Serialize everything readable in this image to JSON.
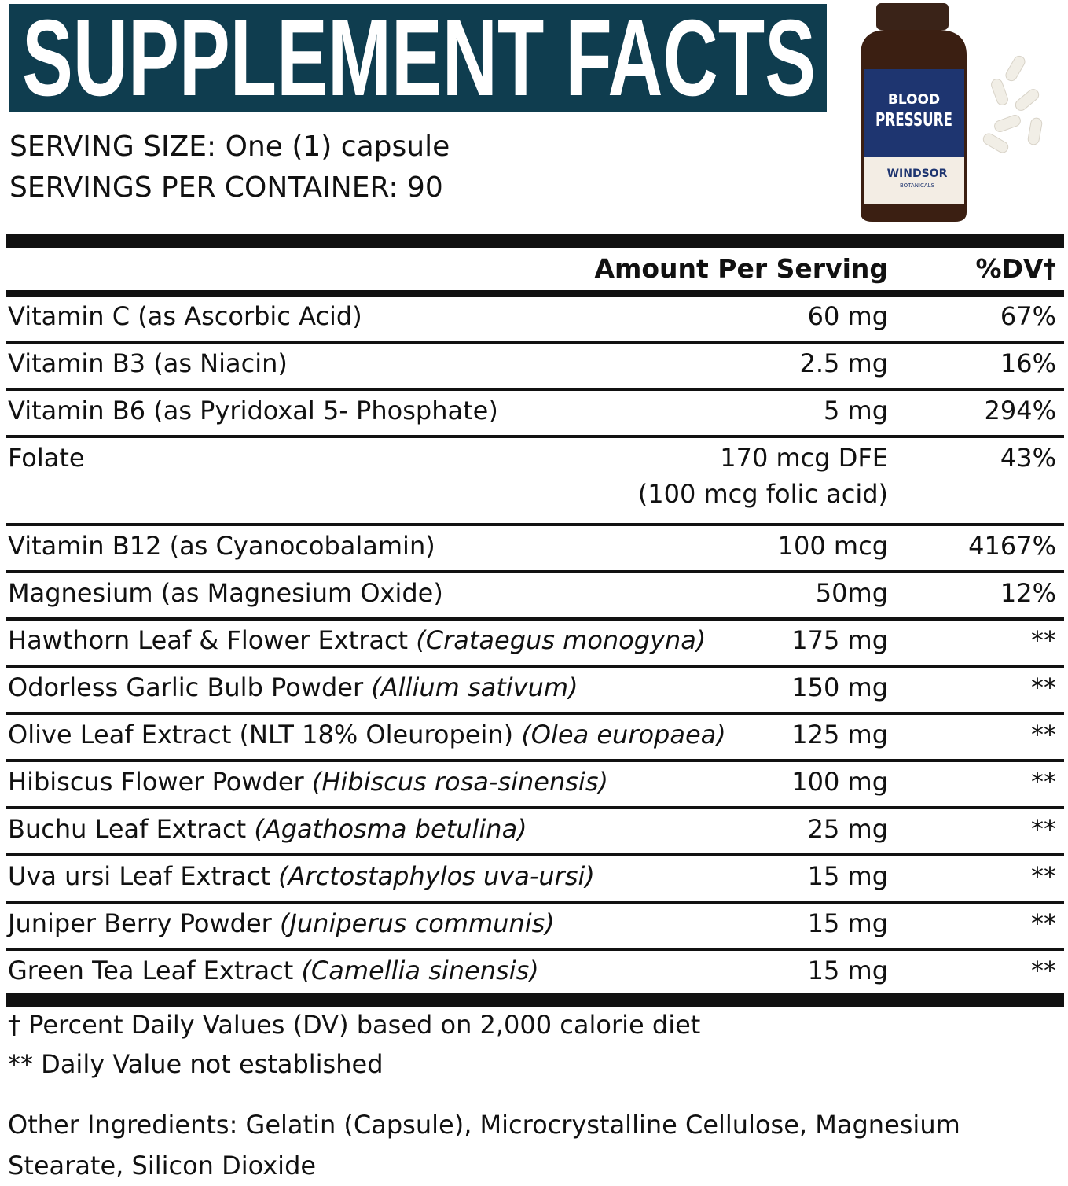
{
  "header": {
    "title": "SUPPLEMENT FACTS",
    "serving_size": "SERVING SIZE: One (1) capsule",
    "servings_per_container": "SERVINGS PER CONTAINER: 90"
  },
  "product": {
    "line1": "BLOOD",
    "line2": "PRESSURE",
    "brand": "WINDSOR",
    "brand_sub": "BOTANICALS"
  },
  "table": {
    "columns": {
      "amount": "Amount Per Serving",
      "dv": "%DV†"
    },
    "rows": [
      {
        "name": "Vitamin C (as Ascorbic Acid)",
        "amount": "60 mg",
        "dv": "67%"
      },
      {
        "name": "Vitamin B3 (as Niacin)",
        "amount": "2.5 mg",
        "dv": "16%"
      },
      {
        "name": "Vitamin B6 (as Pyridoxal 5- Phosphate)",
        "amount": "5 mg",
        "dv": "294%"
      },
      {
        "name": "Folate",
        "amount": "170 mcg DFE",
        "amount_note": "(100 mcg folic acid)",
        "dv": "43%"
      },
      {
        "name": "Vitamin B12 (as Cyanocobalamin)",
        "amount": "100 mcg",
        "dv": "4167%"
      },
      {
        "name": "Magnesium (as Magnesium Oxide)",
        "amount": "50mg",
        "dv": "12%"
      },
      {
        "name": "Hawthorn Leaf & Flower Extract",
        "latin": "(Crataegus monogyna)",
        "amount": "175 mg",
        "dv": "**"
      },
      {
        "name": "Odorless Garlic Bulb Powder",
        "latin": "(Allium sativum)",
        "amount": "150 mg",
        "dv": "**"
      },
      {
        "name": "Olive Leaf Extract (NLT 18% Oleuropein)",
        "latin": "(Olea europaea)",
        "amount": "125 mg",
        "dv": "**"
      },
      {
        "name": "Hibiscus Flower Powder",
        "latin": "(Hibiscus rosa-sinensis)",
        "amount": "100 mg",
        "dv": "**"
      },
      {
        "name": "Buchu Leaf Extract",
        "latin": "(Agathosma betulina)",
        "amount": "25 mg",
        "dv": "**"
      },
      {
        "name": "Uva ursi Leaf Extract",
        "latin": "(Arctostaphylos uva-ursi)",
        "amount": "15 mg",
        "dv": "**"
      },
      {
        "name": "Juniper Berry Powder",
        "latin": "(Juniperus communis)",
        "amount": "15 mg",
        "dv": "**"
      },
      {
        "name": "Green Tea Leaf Extract",
        "latin": "(Camellia sinensis)",
        "amount": "15 mg",
        "dv": "**"
      }
    ]
  },
  "footnotes": {
    "dv_note": "† Percent Daily Values (DV) based on 2,000 calorie diet",
    "not_established": "** Daily Value not established",
    "other_ingredients": "Other Ingredients: Gelatin (Capsule), Microcrystalline Cellulose, Magnesium Stearate, Silicon Dioxide"
  }
}
